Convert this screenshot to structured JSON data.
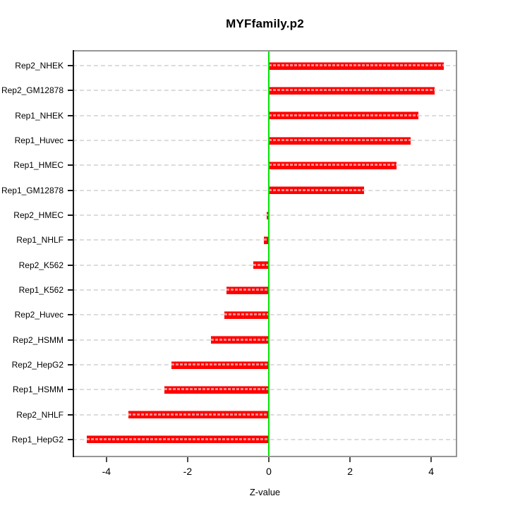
{
  "figure": {
    "background": "#ffffff"
  },
  "chart_data": {
    "type": "bar",
    "orientation": "horizontal",
    "title": "MYFfamily.p2",
    "xlabel": "Z-value",
    "ylabel": "",
    "categories": [
      "Rep2_NHEK",
      "Rep2_GM12878",
      "Rep1_NHEK",
      "Rep1_Huvec",
      "Rep1_HMEC",
      "Rep1_GM12878",
      "Rep2_HMEC",
      "Rep1_NHLF",
      "Rep2_K562",
      "Rep1_K562",
      "Rep2_Huvec",
      "Rep2_HSMM",
      "Rep2_HepG2",
      "Rep1_HSMM",
      "Rep2_NHLF",
      "Rep1_HepG2"
    ],
    "values": [
      4.31,
      4.08,
      3.69,
      3.49,
      3.14,
      2.34,
      -0.05,
      -0.12,
      -0.38,
      -1.05,
      -1.1,
      -1.43,
      -2.39,
      -2.57,
      -3.45,
      -4.48
    ],
    "xlim": [
      -4.83,
      4.64
    ],
    "xticks": [
      -4,
      -2,
      0,
      2,
      4
    ],
    "xtick_labels": [
      "-4",
      "-2",
      "0",
      "2",
      "4"
    ],
    "grid": "horizontal-dashed",
    "legend": "none",
    "colors": {
      "bar": "#ff0000",
      "bar_stripe": "#ff9a9a",
      "zero_line": "#00e400",
      "grid_line": "#dcdcdc",
      "box_border": "#969696",
      "axis_line": "#1a1a1a",
      "text": "#000000"
    }
  }
}
